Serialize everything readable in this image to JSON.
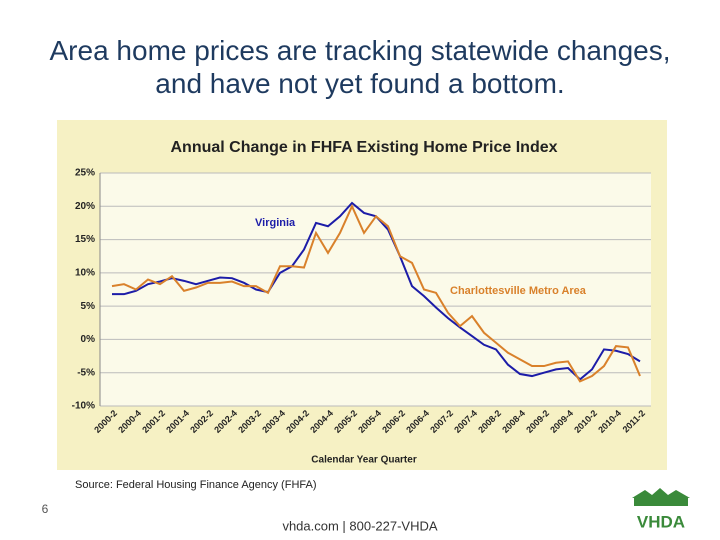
{
  "slide": {
    "title": "Area home prices are tracking statewide changes, and have not yet found a bottom.",
    "page_number": "6",
    "footer": "vhda.com | 800-227-VHDA",
    "logo": "VHDA"
  },
  "chart_data": {
    "type": "line",
    "title": "Annual Change in FHFA Existing Home Price Index",
    "x_label": "Calendar Year Quarter",
    "source": "Source:  Federal Housing Finance Agency (FHFA)",
    "categories": [
      "2000-2",
      null,
      "2000-4",
      null,
      "2001-2",
      null,
      "2001-4",
      null,
      "2002-2",
      null,
      "2002-4",
      null,
      "2003-2",
      null,
      "2003-4",
      null,
      "2004-2",
      null,
      "2004-4",
      null,
      "2005-2",
      null,
      "2005-4",
      null,
      "2006-2",
      null,
      "2006-4",
      null,
      "2007-2",
      null,
      "2007-4",
      null,
      "2008-2",
      null,
      "2008-4",
      null,
      "2009-2",
      null,
      "2009-4",
      null,
      "2010-2",
      null,
      "2010-4",
      null,
      "2011-2"
    ],
    "series": [
      {
        "name": "Virginia",
        "color": "#1c1ca8",
        "values": [
          6.8,
          6.8,
          7.3,
          8.3,
          8.7,
          9.2,
          8.8,
          8.3,
          8.8,
          9.3,
          9.2,
          8.5,
          7.5,
          7.1,
          10,
          11,
          13.5,
          17.5,
          17,
          18.5,
          20.5,
          19,
          18.5,
          16.5,
          12.5,
          8,
          6.5,
          4.8,
          3.2,
          1.8,
          0.5,
          -0.8,
          -1.5,
          -3.8,
          -5.2,
          -5.5,
          -5,
          -4.5,
          -4.3,
          -6,
          -4.5,
          -1.5,
          -1.7,
          -2.2,
          -3.3
        ]
      },
      {
        "name": "Charlottesville Metro Area",
        "color": "#d9812b",
        "values": [
          8,
          8.3,
          7.5,
          9,
          8.3,
          9.5,
          7.3,
          7.8,
          8.5,
          8.5,
          8.7,
          8,
          8,
          7,
          11,
          11,
          10.8,
          16,
          13,
          16,
          20,
          16,
          18.5,
          17,
          12.5,
          11.5,
          7.5,
          7,
          4,
          2,
          3.5,
          1,
          -0.5,
          -2,
          -3,
          -4,
          -4,
          -3.5,
          -3.3,
          -6.3,
          -5.5,
          -4,
          -1,
          -1.2,
          -5.5
        ]
      }
    ],
    "ylim": [
      -10,
      25
    ],
    "yticks": [
      {
        "value": -10,
        "label": "-10%"
      },
      {
        "value": -5,
        "label": "-5%"
      },
      {
        "value": 0,
        "label": "0%"
      },
      {
        "value": 5,
        "label": "5%"
      },
      {
        "value": 10,
        "label": "10%"
      },
      {
        "value": 15,
        "label": "15%"
      },
      {
        "value": 20,
        "label": "20%"
      },
      {
        "value": 25,
        "label": "25%"
      }
    ],
    "grid": true
  }
}
